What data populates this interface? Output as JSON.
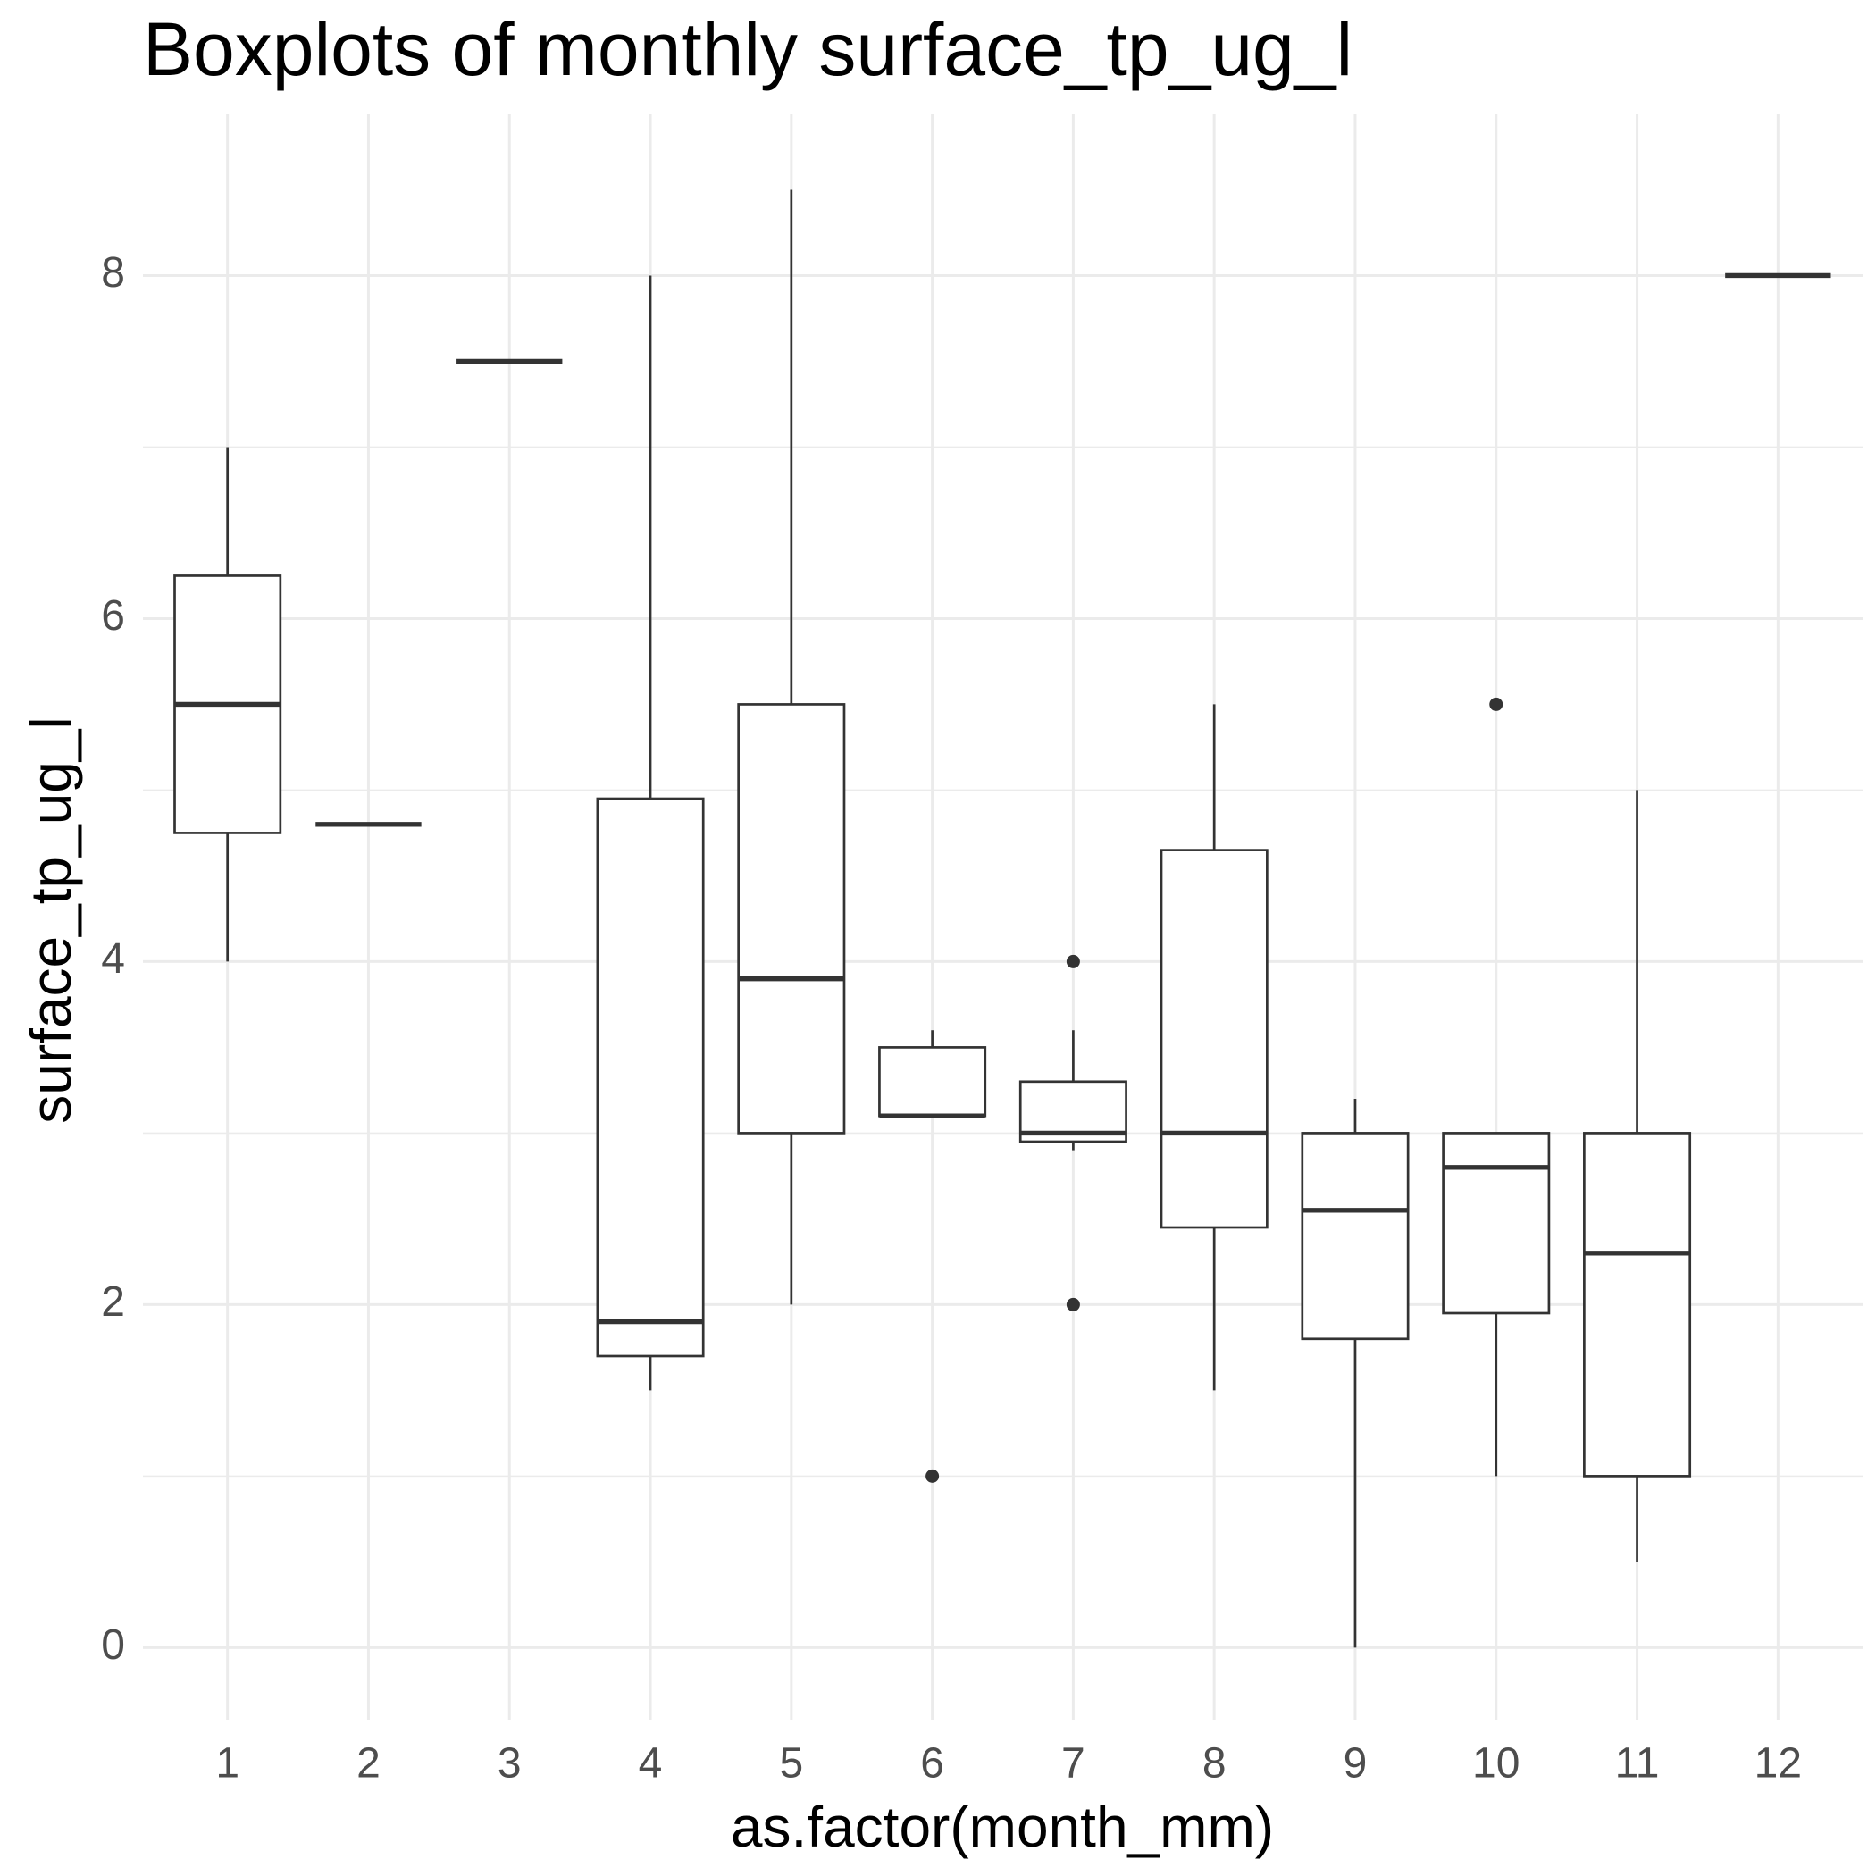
{
  "chart_data": {
    "type": "box",
    "title": "Boxplots of monthly surface_tp_ug_l",
    "x_label": "as.factor(month_mm)",
    "y_label": "surface_tp_ug_l",
    "categories": [
      "1",
      "2",
      "3",
      "4",
      "5",
      "6",
      "7",
      "8",
      "9",
      "10",
      "11",
      "12"
    ],
    "min": [
      4.0,
      4.8,
      7.5,
      1.5,
      2.0,
      3.1,
      2.9,
      1.5,
      0.0,
      1.0,
      0.5,
      8.0
    ],
    "q1": [
      4.75,
      4.8,
      7.5,
      1.7,
      3.0,
      3.1,
      2.95,
      2.45,
      1.8,
      1.95,
      1.0,
      8.0
    ],
    "median": [
      5.5,
      4.8,
      7.5,
      1.9,
      3.9,
      3.1,
      3.0,
      3.0,
      2.55,
      2.8,
      2.3,
      8.0
    ],
    "q3": [
      6.25,
      4.8,
      7.5,
      4.95,
      5.5,
      3.5,
      3.3,
      4.65,
      3.0,
      3.0,
      3.0,
      8.0
    ],
    "max": [
      7.0,
      4.8,
      7.5,
      8.0,
      8.5,
      3.6,
      3.6,
      5.5,
      3.2,
      3.0,
      5.0,
      8.0
    ],
    "outliers": [
      [],
      [],
      [],
      [],
      [],
      [
        1.0
      ],
      [
        4.0,
        2.0
      ],
      [],
      [],
      [
        5.5
      ],
      [],
      []
    ],
    "color": "#333333",
    "ylim": [
      -0.42,
      8.94
    ],
    "yticks": [
      0,
      2,
      4,
      6,
      8
    ],
    "minor_yticks": [
      1,
      3,
      5,
      7
    ],
    "grid": true
  }
}
